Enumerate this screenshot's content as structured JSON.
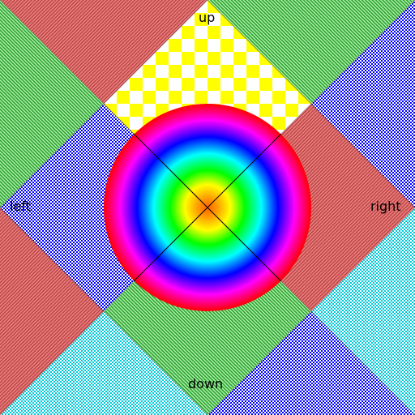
{
  "labels": {
    "up": "up",
    "left": "left",
    "right": "right",
    "down": "down"
  },
  "colors": {
    "red_hatch_a": "#b84848",
    "red_hatch_b": "#f08080",
    "green_hatch_a": "#2e9e2e",
    "green_hatch_b": "#a8f0a8",
    "blue_hatch_a": "#0000ff",
    "blue_hatch_b": "#ffffff",
    "cyan_hatch_a": "#00c8d8",
    "cyan_hatch_b": "#ffffff",
    "checker_a": "#ffff00",
    "checker_b": "#ffffff",
    "rainbow_stops": [
      "#ff8000",
      "#ffff00",
      "#00ff00",
      "#00ffff",
      "#0000ff",
      "#ff00ff",
      "#ff0000"
    ],
    "line": "#000000"
  }
}
